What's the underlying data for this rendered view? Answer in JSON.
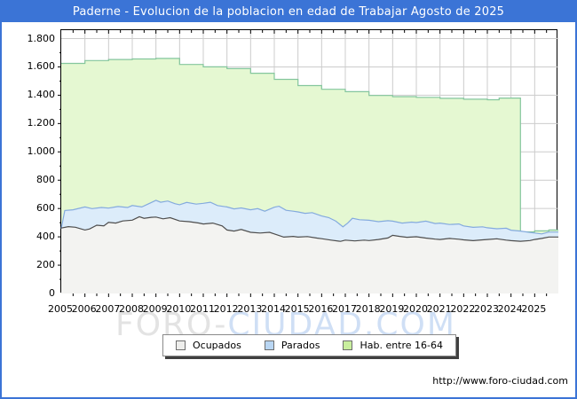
{
  "header": {
    "title": "Paderne - Evolucion de la poblacion en edad de Trabajar Agosto de 2025"
  },
  "watermark": {
    "part1": "FORO-",
    "part2": "CIUDAD.COM"
  },
  "footer": {
    "url": "http://www.foro-ciudad.com"
  },
  "colors": {
    "titlebar": "#3b74d6",
    "frame_border": "#3b74d6",
    "grid": "#cccccc",
    "axis": "#000000",
    "watermark_gray": "#e3e3e3",
    "watermark_blue": "#cfdff5"
  },
  "chart_data": {
    "type": "area",
    "title": "Paderne - Evolucion de la poblacion en edad de Trabajar Agosto de 2025",
    "x_domain": [
      2005,
      2026
    ],
    "grid": true,
    "legend_position": "bottom",
    "x_axis": {
      "years": [
        2005,
        2006,
        2007,
        2008,
        2009,
        2010,
        2011,
        2012,
        2013,
        2014,
        2015,
        2016,
        2017,
        2018,
        2019,
        2020,
        2021,
        2022,
        2023,
        2024,
        2025
      ]
    },
    "y_axis": {
      "max": 1800,
      "ticks": [
        0,
        200,
        400,
        600,
        800,
        1000,
        1200,
        1400,
        1600,
        1800
      ],
      "labels": [
        "0",
        "200",
        "400",
        "600",
        "800",
        "1.000",
        "1.200",
        "1.400",
        "1.600",
        "1.800"
      ]
    },
    "series": [
      {
        "name": "Ocupados",
        "render": "linear",
        "fill": "#f3f3f1",
        "line": "#4d4d4d",
        "swatch": "#eeeeec",
        "points": [
          [
            2005,
            462
          ],
          [
            2005.3,
            472
          ],
          [
            2005.6,
            468
          ],
          [
            2006,
            448
          ],
          [
            2006.2,
            456
          ],
          [
            2006.5,
            482
          ],
          [
            2006.8,
            478
          ],
          [
            2007,
            502
          ],
          [
            2007.3,
            497
          ],
          [
            2007.6,
            512
          ],
          [
            2008,
            518
          ],
          [
            2008.3,
            542
          ],
          [
            2008.5,
            531
          ],
          [
            2008.8,
            538
          ],
          [
            2009,
            540
          ],
          [
            2009.3,
            527
          ],
          [
            2009.6,
            535
          ],
          [
            2010,
            512
          ],
          [
            2010.4,
            507
          ],
          [
            2010.8,
            498
          ],
          [
            2011,
            491
          ],
          [
            2011.4,
            497
          ],
          [
            2011.8,
            477
          ],
          [
            2012,
            448
          ],
          [
            2012.3,
            441
          ],
          [
            2012.6,
            452
          ],
          [
            2013,
            432
          ],
          [
            2013.4,
            427
          ],
          [
            2013.8,
            432
          ],
          [
            2014,
            421
          ],
          [
            2014.4,
            398
          ],
          [
            2014.8,
            403
          ],
          [
            2015,
            398
          ],
          [
            2015.4,
            402
          ],
          [
            2015.8,
            391
          ],
          [
            2016,
            387
          ],
          [
            2016.4,
            377
          ],
          [
            2016.8,
            368
          ],
          [
            2017,
            377
          ],
          [
            2017.4,
            371
          ],
          [
            2017.8,
            377
          ],
          [
            2018,
            374
          ],
          [
            2018.4,
            381
          ],
          [
            2018.8,
            392
          ],
          [
            2019,
            411
          ],
          [
            2019.3,
            403
          ],
          [
            2019.6,
            397
          ],
          [
            2020,
            401
          ],
          [
            2020.4,
            391
          ],
          [
            2020.8,
            384
          ],
          [
            2021,
            381
          ],
          [
            2021.4,
            389
          ],
          [
            2021.8,
            383
          ],
          [
            2022,
            379
          ],
          [
            2022.4,
            373
          ],
          [
            2022.8,
            379
          ],
          [
            2023,
            381
          ],
          [
            2023.4,
            386
          ],
          [
            2023.8,
            377
          ],
          [
            2024,
            373
          ],
          [
            2024.4,
            369
          ],
          [
            2024.8,
            374
          ],
          [
            2025,
            381
          ],
          [
            2025.3,
            389
          ],
          [
            2025.6,
            399
          ]
        ]
      },
      {
        "name": "Parados",
        "render": "linear",
        "fill": "#dcecfa",
        "line": "#84aade",
        "swatch": "#b9d6f3",
        "points": [
          [
            2005,
            458
          ],
          [
            2005.15,
            586
          ],
          [
            2005.5,
            591
          ],
          [
            2006,
            611
          ],
          [
            2006.3,
            599
          ],
          [
            2006.7,
            607
          ],
          [
            2007,
            603
          ],
          [
            2007.4,
            614
          ],
          [
            2007.8,
            607
          ],
          [
            2008,
            621
          ],
          [
            2008.4,
            611
          ],
          [
            2008.7,
            634
          ],
          [
            2009,
            658
          ],
          [
            2009.2,
            644
          ],
          [
            2009.5,
            653
          ],
          [
            2009.8,
            634
          ],
          [
            2010,
            627
          ],
          [
            2010.3,
            643
          ],
          [
            2010.7,
            631
          ],
          [
            2011,
            637
          ],
          [
            2011.3,
            644
          ],
          [
            2011.6,
            621
          ],
          [
            2012,
            611
          ],
          [
            2012.3,
            597
          ],
          [
            2012.6,
            604
          ],
          [
            2013,
            591
          ],
          [
            2013.3,
            599
          ],
          [
            2013.6,
            581
          ],
          [
            2014,
            609
          ],
          [
            2014.2,
            616
          ],
          [
            2014.5,
            587
          ],
          [
            2014.8,
            581
          ],
          [
            2015,
            576
          ],
          [
            2015.3,
            566
          ],
          [
            2015.6,
            571
          ],
          [
            2016,
            547
          ],
          [
            2016.3,
            536
          ],
          [
            2016.6,
            511
          ],
          [
            2016.9,
            471
          ],
          [
            2017.1,
            497
          ],
          [
            2017.3,
            531
          ],
          [
            2017.6,
            521
          ],
          [
            2018,
            517
          ],
          [
            2018.4,
            507
          ],
          [
            2018.8,
            514
          ],
          [
            2019,
            511
          ],
          [
            2019.4,
            497
          ],
          [
            2019.8,
            504
          ],
          [
            2020,
            501
          ],
          [
            2020.4,
            511
          ],
          [
            2020.8,
            494
          ],
          [
            2021,
            497
          ],
          [
            2021.4,
            487
          ],
          [
            2021.8,
            491
          ],
          [
            2022,
            477
          ],
          [
            2022.4,
            467
          ],
          [
            2022.8,
            471
          ],
          [
            2023,
            464
          ],
          [
            2023.4,
            457
          ],
          [
            2023.8,
            461
          ],
          [
            2024,
            447
          ],
          [
            2024.4,
            441
          ],
          [
            2024.8,
            431
          ],
          [
            2025,
            427
          ],
          [
            2025.3,
            421
          ],
          [
            2025.6,
            434
          ]
        ]
      },
      {
        "name": "Hab. entre 16-64",
        "render": "step",
        "fill": "#e5f8d2",
        "line": "#84c69d",
        "swatch": "#c9ef9e",
        "points": [
          [
            2005,
            1625
          ],
          [
            2006,
            1645
          ],
          [
            2007,
            1652
          ],
          [
            2008,
            1656
          ],
          [
            2009,
            1660
          ],
          [
            2010,
            1617
          ],
          [
            2011,
            1600
          ],
          [
            2012,
            1588
          ],
          [
            2013,
            1555
          ],
          [
            2014,
            1512
          ],
          [
            2015,
            1468
          ],
          [
            2016,
            1442
          ],
          [
            2017,
            1425
          ],
          [
            2018,
            1398
          ],
          [
            2019,
            1390
          ],
          [
            2020,
            1385
          ],
          [
            2021,
            1378
          ],
          [
            2022,
            1372
          ],
          [
            2023,
            1368
          ],
          [
            2023.5,
            1380
          ],
          [
            2024.4,
            435
          ],
          [
            2025,
            442
          ],
          [
            2025.6,
            448
          ]
        ]
      }
    ]
  }
}
